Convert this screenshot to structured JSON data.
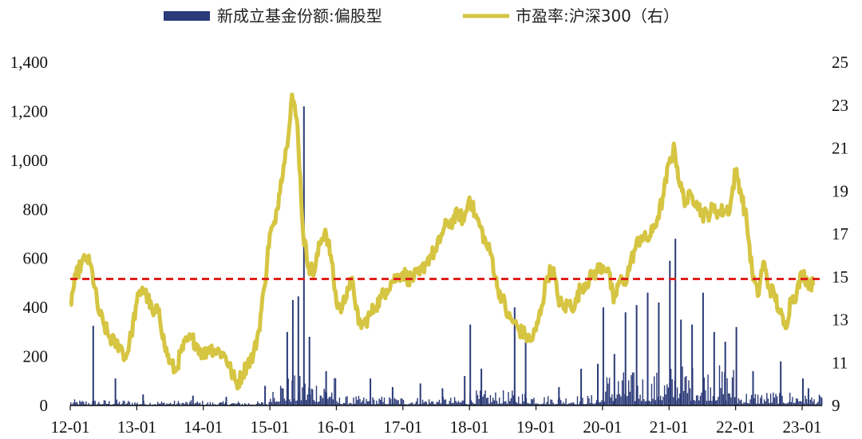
{
  "chart_data": {
    "type": "bar+line",
    "legend": [
      {
        "label": "新成立基金份额:偏股型",
        "color": "#2b3a78"
      },
      {
        "label": "市盈率:沪深300（右）",
        "color": "#d6c542"
      }
    ],
    "legend_position": "top-center",
    "x_tick_labels": [
      "12-01",
      "13-01",
      "14-01",
      "15-01",
      "16-01",
      "17-01",
      "18-01",
      "19-01",
      "20-01",
      "21-01",
      "22-01",
      "23-01"
    ],
    "y_left": {
      "ticks": [
        "0",
        "200",
        "400",
        "600",
        "800",
        "1,000",
        "1,200",
        "1,400"
      ],
      "range": [
        0,
        1400
      ]
    },
    "y_right": {
      "ticks": [
        "9",
        "11",
        "13",
        "15",
        "17",
        "19",
        "21",
        "23",
        "25"
      ],
      "range": [
        9,
        25
      ]
    },
    "reference_line": {
      "axis": "right",
      "value": 14.9,
      "color": "#e0201b",
      "style": "dashed"
    },
    "pe_series": {
      "name": "市盈率:沪深300（右）",
      "color": "#d6c542",
      "points": [
        [
          "2012-01",
          13.7
        ],
        [
          "2012-02",
          15.0
        ],
        [
          "2012-03",
          15.6
        ],
        [
          "2012-04",
          15.9
        ],
        [
          "2012-05",
          15.2
        ],
        [
          "2012-06",
          13.5
        ],
        [
          "2012-07",
          12.8
        ],
        [
          "2012-08",
          12.2
        ],
        [
          "2012-09",
          11.9
        ],
        [
          "2012-10",
          11.8
        ],
        [
          "2012-11",
          11.2
        ],
        [
          "2012-12",
          12.3
        ],
        [
          "2013-01",
          13.8
        ],
        [
          "2013-02",
          14.5
        ],
        [
          "2013-03",
          14.0
        ],
        [
          "2013-04",
          13.2
        ],
        [
          "2013-05",
          13.5
        ],
        [
          "2013-06",
          11.8
        ],
        [
          "2013-07",
          11.0
        ],
        [
          "2013-08",
          10.6
        ],
        [
          "2013-09",
          11.5
        ],
        [
          "2013-10",
          12.0
        ],
        [
          "2013-11",
          12.1
        ],
        [
          "2013-12",
          11.8
        ],
        [
          "2014-01",
          11.3
        ],
        [
          "2014-02",
          11.7
        ],
        [
          "2014-03",
          11.6
        ],
        [
          "2014-04",
          11.5
        ],
        [
          "2014-05",
          11.3
        ],
        [
          "2014-06",
          10.6
        ],
        [
          "2014-07",
          10.0
        ],
        [
          "2014-08",
          10.4
        ],
        [
          "2014-09",
          11.0
        ],
        [
          "2014-10",
          11.3
        ],
        [
          "2014-11",
          12.5
        ],
        [
          "2014-12",
          14.5
        ],
        [
          "2015-01",
          17.0
        ],
        [
          "2015-02",
          17.5
        ],
        [
          "2015-03",
          19.5
        ],
        [
          "2015-04",
          21.0
        ],
        [
          "2015-05",
          23.5
        ],
        [
          "2015-06",
          22.0
        ],
        [
          "2015-07",
          17.0
        ],
        [
          "2015-08",
          15.5
        ],
        [
          "2015-09",
          15.2
        ],
        [
          "2015-10",
          16.5
        ],
        [
          "2015-11",
          17.2
        ],
        [
          "2015-12",
          16.0
        ],
        [
          "2016-01",
          13.8
        ],
        [
          "2016-02",
          13.5
        ],
        [
          "2016-03",
          14.5
        ],
        [
          "2016-04",
          14.7
        ],
        [
          "2016-05",
          12.8
        ],
        [
          "2016-06",
          12.8
        ],
        [
          "2016-07",
          13.2
        ],
        [
          "2016-08",
          13.6
        ],
        [
          "2016-09",
          14.0
        ],
        [
          "2016-10",
          14.4
        ],
        [
          "2016-11",
          14.8
        ],
        [
          "2016-12",
          15.0
        ],
        [
          "2017-01",
          15.2
        ],
        [
          "2017-02",
          14.9
        ],
        [
          "2017-03",
          15.0
        ],
        [
          "2017-04",
          15.1
        ],
        [
          "2017-05",
          15.6
        ],
        [
          "2017-06",
          16.0
        ],
        [
          "2017-07",
          16.2
        ],
        [
          "2017-08",
          17.0
        ],
        [
          "2017-09",
          17.5
        ],
        [
          "2017-10",
          17.6
        ],
        [
          "2017-11",
          18.0
        ],
        [
          "2017-12",
          17.6
        ],
        [
          "2018-01",
          18.7
        ],
        [
          "2018-02",
          17.9
        ],
        [
          "2018-03",
          17.3
        ],
        [
          "2018-04",
          16.5
        ],
        [
          "2018-05",
          16.0
        ],
        [
          "2018-06",
          14.5
        ],
        [
          "2018-07",
          14.0
        ],
        [
          "2018-08",
          13.1
        ],
        [
          "2018-09",
          12.9
        ],
        [
          "2018-10",
          12.5
        ],
        [
          "2018-11",
          12.3
        ],
        [
          "2018-12",
          12.0
        ],
        [
          "2019-01",
          12.5
        ],
        [
          "2019-02",
          13.6
        ],
        [
          "2019-03",
          15.0
        ],
        [
          "2019-04",
          15.4
        ],
        [
          "2019-05",
          14.0
        ],
        [
          "2019-06",
          13.5
        ],
        [
          "2019-07",
          13.8
        ],
        [
          "2019-08",
          13.6
        ],
        [
          "2019-09",
          14.5
        ],
        [
          "2019-10",
          14.7
        ],
        [
          "2019-11",
          15.0
        ],
        [
          "2019-12",
          15.3
        ],
        [
          "2020-01",
          15.5
        ],
        [
          "2020-02",
          15.4
        ],
        [
          "2020-03",
          13.8
        ],
        [
          "2020-04",
          14.8
        ],
        [
          "2020-05",
          14.7
        ],
        [
          "2020-06",
          15.6
        ],
        [
          "2020-07",
          16.4
        ],
        [
          "2020-08",
          16.9
        ],
        [
          "2020-09",
          16.7
        ],
        [
          "2020-10",
          17.1
        ],
        [
          "2020-11",
          17.8
        ],
        [
          "2020-12",
          18.8
        ],
        [
          "2021-01",
          20.3
        ],
        [
          "2021-02",
          21.0
        ],
        [
          "2021-03",
          19.2
        ],
        [
          "2021-04",
          18.5
        ],
        [
          "2021-05",
          18.8
        ],
        [
          "2021-06",
          18.5
        ],
        [
          "2021-07",
          17.9
        ],
        [
          "2021-08",
          17.9
        ],
        [
          "2021-09",
          18.2
        ],
        [
          "2021-10",
          18.0
        ],
        [
          "2021-11",
          18.1
        ],
        [
          "2021-12",
          18.2
        ],
        [
          "2022-01",
          20.0
        ],
        [
          "2022-02",
          18.9
        ],
        [
          "2022-03",
          17.6
        ],
        [
          "2022-04",
          15.2
        ],
        [
          "2022-05",
          14.1
        ],
        [
          "2022-06",
          15.7
        ],
        [
          "2022-07",
          14.5
        ],
        [
          "2022-08",
          14.2
        ],
        [
          "2022-09",
          13.3
        ],
        [
          "2022-10",
          12.6
        ],
        [
          "2022-11",
          14.0
        ],
        [
          "2022-12",
          14.2
        ],
        [
          "2023-01",
          15.2
        ],
        [
          "2023-02",
          14.8
        ],
        [
          "2023-03",
          14.6
        ]
      ]
    },
    "fund_series": {
      "name": "新成立基金份额:偏股型",
      "color": "#2b3a78",
      "spikes": [
        [
          "2012-05",
          325
        ],
        [
          "2012-09",
          110
        ],
        [
          "2013-02",
          45
        ],
        [
          "2013-11",
          40
        ],
        [
          "2014-05",
          35
        ],
        [
          "2014-12",
          80
        ],
        [
          "2015-04",
          300
        ],
        [
          "2015-05",
          430
        ],
        [
          "2015-06",
          445
        ],
        [
          "2015-07",
          1220
        ],
        [
          "2015-08",
          280
        ],
        [
          "2015-11",
          140
        ],
        [
          "2016-07",
          110
        ],
        [
          "2016-11",
          75
        ],
        [
          "2017-04",
          90
        ],
        [
          "2017-08",
          70
        ],
        [
          "2017-12",
          120
        ],
        [
          "2018-01",
          330
        ],
        [
          "2018-03",
          150
        ],
        [
          "2018-09",
          400
        ],
        [
          "2018-11",
          270
        ],
        [
          "2019-05",
          75
        ],
        [
          "2019-09",
          150
        ],
        [
          "2019-12",
          170
        ],
        [
          "2020-01",
          400
        ],
        [
          "2020-03",
          210
        ],
        [
          "2020-05",
          380
        ],
        [
          "2020-07",
          410
        ],
        [
          "2020-09",
          460
        ],
        [
          "2020-11",
          420
        ],
        [
          "2021-01",
          590
        ],
        [
          "2021-02",
          680
        ],
        [
          "2021-03",
          350
        ],
        [
          "2021-05",
          330
        ],
        [
          "2021-07",
          460
        ],
        [
          "2021-09",
          300
        ],
        [
          "2021-11",
          260
        ],
        [
          "2022-01",
          320
        ],
        [
          "2022-04",
          140
        ],
        [
          "2022-09",
          180
        ],
        [
          "2023-01",
          110
        ],
        [
          "2023-02",
          70
        ]
      ],
      "base_by_year": [
        [
          2012,
          14
        ],
        [
          2013,
          12
        ],
        [
          2014,
          10
        ],
        [
          2015,
          70
        ],
        [
          2016,
          22
        ],
        [
          2017,
          20
        ],
        [
          2018,
          35
        ],
        [
          2019,
          25
        ],
        [
          2020,
          80
        ],
        [
          2021,
          95
        ],
        [
          2022,
          35
        ],
        [
          2023,
          25
        ]
      ]
    }
  }
}
